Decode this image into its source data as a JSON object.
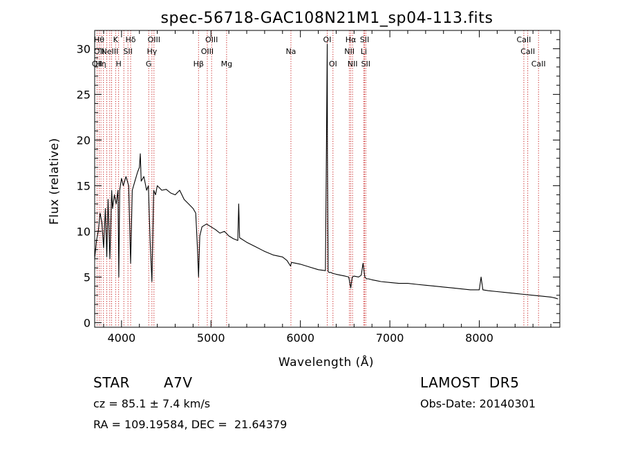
{
  "chart_data": {
    "type": "line",
    "title": "spec-56718-GAC108N21M1_sp04-113.fits",
    "xlabel": "Wavelength (Å)",
    "ylabel": "Flux (relative)",
    "xlim": [
      3700,
      8900
    ],
    "ylim": [
      -0.5,
      32
    ],
    "xticks": [
      4000,
      5000,
      6000,
      7000,
      8000
    ],
    "yticks": [
      0,
      5,
      10,
      15,
      20,
      25,
      30
    ],
    "grid": false,
    "series": [
      {
        "x": [
          3700,
          3720,
          3740,
          3760,
          3780,
          3800,
          3820,
          3835,
          3850,
          3870,
          3890,
          3900,
          3920,
          3940,
          3960,
          3970,
          3980,
          4000,
          4020,
          4050,
          4080,
          4102,
          4120,
          4150,
          4180,
          4200,
          4210,
          4220,
          4250,
          4280,
          4300,
          4320,
          4340,
          4360,
          4380,
          4400,
          4450,
          4500,
          4550,
          4600,
          4650,
          4700,
          4750,
          4800,
          4830,
          4850,
          4861,
          4875,
          4900,
          4950,
          5000,
          5050,
          5100,
          5150,
          5200,
          5250,
          5300,
          5310,
          5320,
          5400,
          5500,
          5600,
          5700,
          5800,
          5850,
          5890,
          5900,
          5950,
          6000,
          6100,
          6200,
          6280,
          6300,
          6302,
          6310,
          6320,
          6330,
          6340,
          6360,
          6400,
          6450,
          6500,
          6540,
          6563,
          6580,
          6600,
          6650,
          6680,
          6700,
          6720,
          6740,
          6760,
          6800,
          6850,
          6900,
          7000,
          7100,
          7200,
          7300,
          7400,
          7500,
          7600,
          7700,
          7800,
          7900,
          8000,
          8020,
          8040,
          8100,
          8200,
          8300,
          8400,
          8500,
          8600,
          8700,
          8800,
          8850,
          8880
        ],
        "y": [
          7,
          9,
          10,
          12,
          11,
          8.2,
          12.5,
          7.2,
          13.5,
          7,
          14.5,
          12.5,
          14,
          13,
          14.5,
          5,
          14.5,
          15.8,
          15,
          16,
          15,
          6.5,
          14.5,
          15.5,
          16.5,
          17,
          18.5,
          15.5,
          16,
          14.5,
          15,
          9,
          4.5,
          14.5,
          14,
          15,
          14.5,
          14.6,
          14.2,
          14,
          14.5,
          13.5,
          13,
          12.5,
          12,
          8,
          5,
          9.5,
          10.5,
          10.8,
          10.5,
          10.2,
          9.8,
          10,
          9.5,
          9.2,
          9,
          13,
          9.3,
          8.8,
          8.3,
          7.8,
          7.4,
          7.2,
          6.8,
          6.2,
          6.6,
          6.5,
          6.4,
          6.1,
          5.8,
          5.7,
          30.5,
          18.5,
          5.6,
          5.5,
          5.5,
          5.5,
          5.4,
          5.3,
          5.2,
          5.1,
          5.0,
          3.8,
          5,
          5.1,
          5,
          5.2,
          6.5,
          5,
          4.8,
          4.8,
          4.7,
          4.6,
          4.5,
          4.4,
          4.3,
          4.3,
          4.2,
          4.1,
          4.0,
          3.9,
          3.8,
          3.7,
          3.6,
          3.6,
          5.0,
          3.6,
          3.5,
          3.4,
          3.3,
          3.2,
          3.1,
          3.0,
          2.9,
          2.8,
          2.7,
          2.6
        ]
      }
    ],
    "lines": [
      {
        "x": 3727,
        "labels": [
          "OII"
        ],
        "rows": [
          2
        ]
      },
      {
        "x": 3750,
        "labels": [
          "OII",
          "Hθ"
        ],
        "rows": [
          1,
          0
        ]
      },
      {
        "x": 3770,
        "labels": [
          "Hη"
        ],
        "rows": [
          2
        ]
      },
      {
        "x": 3798,
        "labels": [],
        "rows": []
      },
      {
        "x": 3835,
        "labels": [],
        "rows": []
      },
      {
        "x": 3869,
        "labels": [
          "NeIII"
        ],
        "rows": [
          1
        ]
      },
      {
        "x": 3889,
        "labels": [],
        "rows": []
      },
      {
        "x": 3934,
        "labels": [
          "K"
        ],
        "rows": [
          0
        ]
      },
      {
        "x": 3968,
        "labels": [
          "H"
        ],
        "rows": [
          2
        ]
      },
      {
        "x": 4026,
        "labels": [],
        "rows": []
      },
      {
        "x": 4072,
        "labels": [
          "SII"
        ],
        "rows": [
          1
        ]
      },
      {
        "x": 4102,
        "labels": [
          "Hδ"
        ],
        "rows": [
          0
        ]
      },
      {
        "x": 4304,
        "labels": [
          "G"
        ],
        "rows": [
          2
        ]
      },
      {
        "x": 4340,
        "labels": [
          "Hγ"
        ],
        "rows": [
          1
        ]
      },
      {
        "x": 4363,
        "labels": [
          "OIII"
        ],
        "rows": [
          0
        ]
      },
      {
        "x": 4861,
        "labels": [
          "Hβ"
        ],
        "rows": [
          2
        ]
      },
      {
        "x": 4959,
        "labels": [
          "OIII"
        ],
        "rows": [
          1
        ]
      },
      {
        "x": 5007,
        "labels": [
          "OIII"
        ],
        "rows": [
          0
        ]
      },
      {
        "x": 5175,
        "labels": [
          "Mg"
        ],
        "rows": [
          2
        ]
      },
      {
        "x": 5894,
        "labels": [
          "Na"
        ],
        "rows": [
          1
        ]
      },
      {
        "x": 6300,
        "labels": [
          "OI"
        ],
        "rows": [
          0
        ]
      },
      {
        "x": 6364,
        "labels": [
          "OI"
        ],
        "rows": [
          2
        ]
      },
      {
        "x": 6548,
        "labels": [
          "NII"
        ],
        "rows": [
          1
        ]
      },
      {
        "x": 6563,
        "labels": [
          "Hα"
        ],
        "rows": [
          0
        ]
      },
      {
        "x": 6583,
        "labels": [
          "NII"
        ],
        "rows": [
          2
        ]
      },
      {
        "x": 6708,
        "labels": [
          "Li"
        ],
        "rows": [
          1
        ]
      },
      {
        "x": 6717,
        "labels": [
          "SII"
        ],
        "rows": [
          0
        ]
      },
      {
        "x": 6731,
        "labels": [
          "SII"
        ],
        "rows": [
          2
        ]
      },
      {
        "x": 8498,
        "labels": [
          "CaII"
        ],
        "rows": [
          0
        ]
      },
      {
        "x": 8542,
        "labels": [
          "CaII"
        ],
        "rows": [
          1
        ]
      },
      {
        "x": 8662,
        "labels": [
          "CaII"
        ],
        "rows": [
          2
        ]
      }
    ],
    "line_color": "#c00000"
  },
  "info": {
    "class": "STAR",
    "subclass": "A7V",
    "cz": "cz = 85.1 ± 7.4 km/s",
    "radec": "RA = 109.19584, DEC =  21.64379",
    "survey": "LAMOST  DR5",
    "obs_date": "Obs-Date: 20140301"
  }
}
